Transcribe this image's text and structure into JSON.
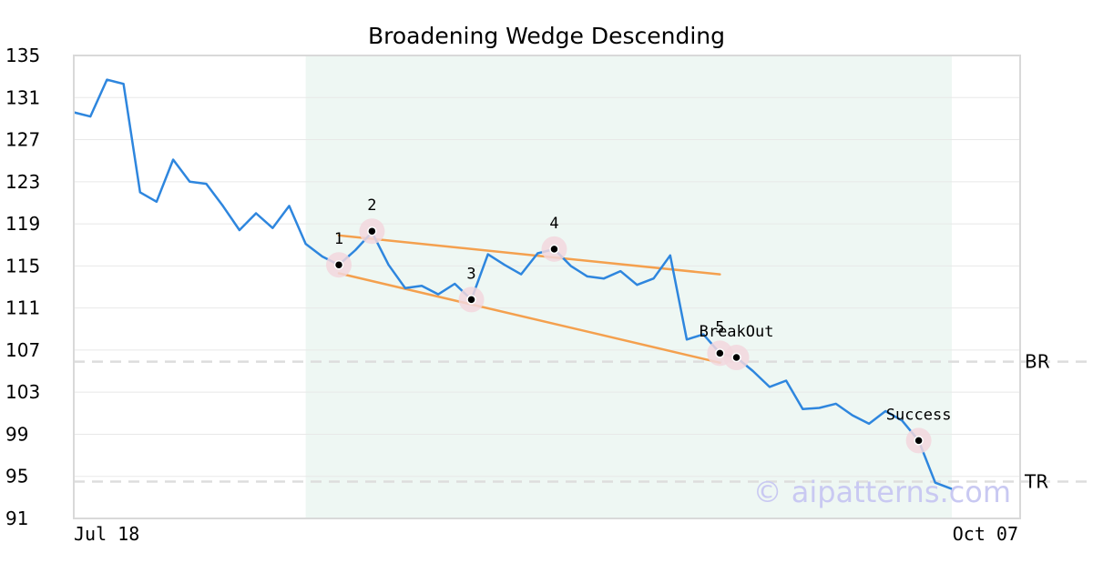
{
  "chart_data": {
    "type": "line",
    "title": "Broadening Wedge Descending",
    "xlabel": "",
    "ylabel": "",
    "x_tick_labels": [
      "Jul 18",
      "Oct 07"
    ],
    "ylim": [
      91,
      135
    ],
    "y_ticks": [
      91,
      95,
      99,
      103,
      107,
      111,
      115,
      119,
      123,
      127,
      131,
      135
    ],
    "grid": true,
    "series": [
      {
        "color": "#2e86de",
        "values": [
          129.6,
          129.2,
          132.7,
          132.3,
          122.0,
          121.1,
          125.1,
          123.0,
          122.8,
          120.7,
          118.4,
          120.0,
          118.6,
          120.7,
          117.1,
          115.9,
          115.1,
          116.5,
          118.2,
          115.1,
          112.9,
          113.1,
          112.3,
          113.3,
          111.8,
          116.1,
          115.1,
          114.2,
          116.2,
          116.6,
          115.0,
          114.0,
          113.8,
          114.5,
          113.2,
          113.8,
          116.0,
          108.0,
          108.5,
          106.7,
          106.3,
          105.0,
          103.5,
          104.1,
          101.4,
          101.5,
          101.9,
          100.8,
          100.0,
          101.2,
          100.3,
          98.4,
          94.4,
          93.8
        ]
      }
    ],
    "trendlines": [
      {
        "name": "upper",
        "color": "#f4a04e",
        "from": {
          "index": 16,
          "value": 117.9
        },
        "to": {
          "index": 39,
          "value": 114.2
        }
      },
      {
        "name": "lower",
        "color": "#f4a04e",
        "from": {
          "index": 16,
          "value": 114.3
        },
        "to": {
          "index": 39,
          "value": 105.8
        }
      }
    ],
    "pattern_points": [
      {
        "label": "1",
        "index": 16,
        "value": 115.1
      },
      {
        "label": "2",
        "index": 18,
        "value": 118.3
      },
      {
        "label": "3",
        "index": 24,
        "value": 111.8
      },
      {
        "label": "4",
        "index": 29,
        "value": 116.6
      },
      {
        "label": "5",
        "index": 39,
        "value": 106.7
      },
      {
        "label": "BreakOut",
        "index": 40,
        "value": 106.3
      },
      {
        "label": "Success",
        "index": 51,
        "value": 98.4
      }
    ],
    "highlight_region": {
      "from_index": 14,
      "to_index": 53,
      "color": "#eef7f3"
    },
    "reference_lines": [
      {
        "label": "BR",
        "value": 105.9,
        "color": "#dddddd"
      },
      {
        "label": "TR",
        "value": 94.5,
        "color": "#dddddd"
      }
    ],
    "watermark": "© aipatterns.com"
  }
}
